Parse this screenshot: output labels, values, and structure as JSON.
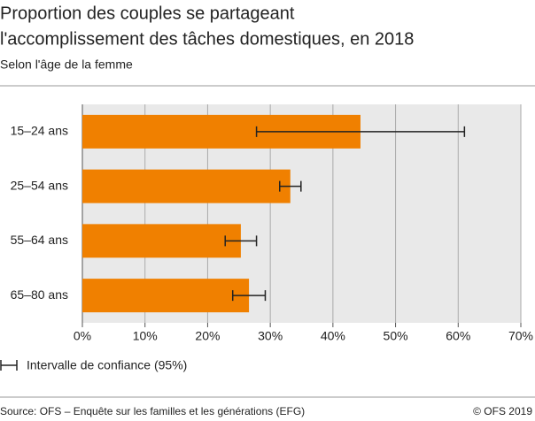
{
  "chart_data": {
    "type": "bar",
    "orientation": "horizontal",
    "title": [
      "Proportion des couples se partageant",
      "l'accomplissement des tâches domestiques, en 2018"
    ],
    "subtitle": "Selon l'âge de la femme",
    "categories": [
      "15–24 ans",
      "25–54 ans",
      "55–64 ans",
      "65–80 ans"
    ],
    "values": [
      44.4,
      33.2,
      25.3,
      26.6
    ],
    "errors": [
      16.6,
      1.7,
      2.5,
      2.6
    ],
    "color": "#f08000",
    "xlim": [
      0,
      70
    ],
    "xticks": [
      {
        "value": 0,
        "label": "0%"
      },
      {
        "value": 10,
        "label": "10%"
      },
      {
        "value": 20,
        "label": "20%"
      },
      {
        "value": 30,
        "label": "30%"
      },
      {
        "value": 40,
        "label": "40%"
      },
      {
        "value": 50,
        "label": "50%"
      },
      {
        "value": 60,
        "label": "60%"
      },
      {
        "value": 70,
        "label": "70%"
      }
    ],
    "grid": true,
    "error_legend": "Intervalle de confiance (95%)",
    "source": "Source: OFS – Enquête sur les familles et les générations (EFG)",
    "copyright": "© OFS 2019"
  }
}
